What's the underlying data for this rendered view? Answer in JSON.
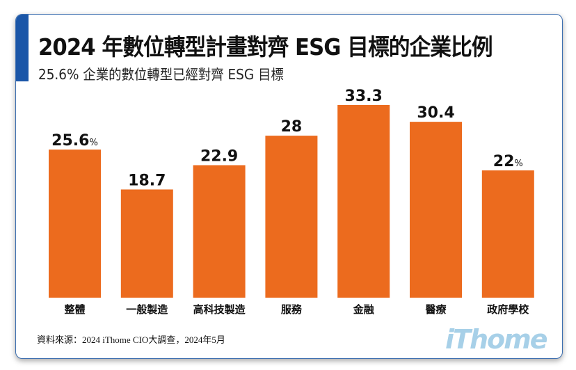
{
  "chart_data": {
    "type": "bar",
    "title": "2024 年數位轉型計畫對齊 ESG 目標的企業比例",
    "subtitle": "25.6% 企業的數位轉型已經對齊 ESG 目標",
    "categories": [
      "整體",
      "一般製造",
      "高科技製造",
      "服務",
      "金融",
      "醫療",
      "政府學校"
    ],
    "values": [
      25.6,
      18.7,
      22.9,
      28,
      33.3,
      30.4,
      22
    ],
    "value_labels": [
      "25.6",
      "18.7",
      "22.9",
      "28",
      "33.3",
      "30.4",
      "22"
    ],
    "unit_suffix_shown": [
      "%",
      "",
      "",
      "",
      "",
      "",
      "%"
    ],
    "ylim": [
      0,
      33.3
    ],
    "grid": false,
    "bar_color": "#ec6b1e"
  },
  "source": "資料來源：2024 iThome CIO大調查，2024年5月",
  "logo": "iThome",
  "colors": {
    "accent": "#1a56a8",
    "logo": "#a7d0e8"
  }
}
